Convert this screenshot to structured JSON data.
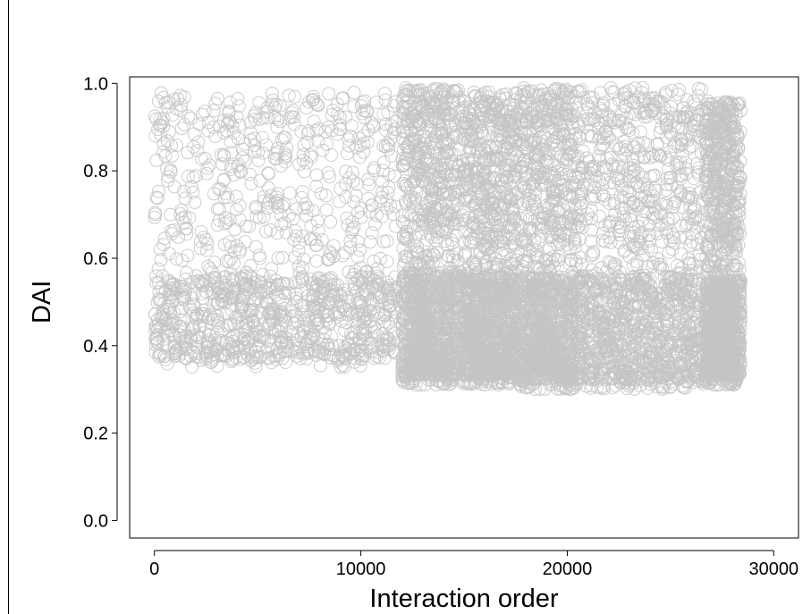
{
  "chart_data": {
    "type": "scatter",
    "title": "",
    "xlabel": "Interaction order",
    "ylabel": "DAI",
    "xlim": [
      -1200,
      31200
    ],
    "ylim": [
      -0.04,
      1.015
    ],
    "xticks": [
      0,
      10000,
      20000,
      30000
    ],
    "xtick_labels": [
      "0",
      "10000",
      "20000",
      "30000"
    ],
    "yticks": [
      0.0,
      0.2,
      0.4,
      0.6,
      0.8,
      1.0
    ],
    "ytick_labels": [
      "0.0",
      "0.2",
      "0.4",
      "0.6",
      "0.8",
      "1.0"
    ],
    "grid": false,
    "legend": "none",
    "marker": "open-circle",
    "point_color": "#c4c4c4",
    "segments": [
      {
        "x_start": 0,
        "x_end": 11700,
        "y_min": 0.35,
        "y_max": 0.98,
        "dense_low": 0.37,
        "dense_high": 0.56
      },
      {
        "x_start": 12000,
        "x_end": 14800,
        "y_min": 0.31,
        "y_max": 0.99,
        "dense_low": 0.33,
        "dense_high": 0.57
      },
      {
        "x_start": 14900,
        "x_end": 17600,
        "y_min": 0.31,
        "y_max": 0.98,
        "dense_low": 0.33,
        "dense_high": 0.56
      },
      {
        "x_start": 17700,
        "x_end": 20800,
        "y_min": 0.3,
        "y_max": 0.99,
        "dense_low": 0.32,
        "dense_high": 0.56
      },
      {
        "x_start": 20900,
        "x_end": 26600,
        "y_min": 0.3,
        "y_max": 0.99,
        "dense_low": 0.32,
        "dense_high": 0.56
      },
      {
        "x_start": 26700,
        "x_end": 28400,
        "y_min": 0.31,
        "y_max": 0.96,
        "dense_low": 0.33,
        "dense_high": 0.55
      }
    ]
  }
}
